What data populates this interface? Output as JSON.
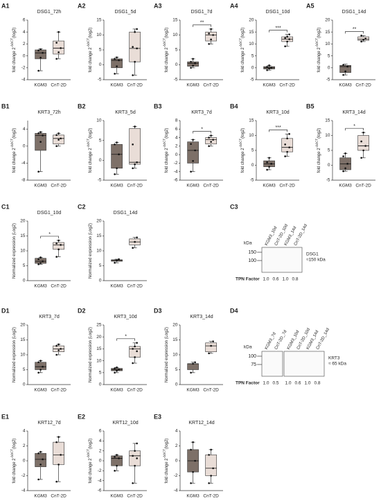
{
  "chart_data": [
    {
      "type": "box",
      "panel": "A1",
      "title": "DSG1_72h",
      "row": 0,
      "col": 0,
      "ylabel": "fold change 2",
      "ylabel_sup": "-ΔΔCT",
      "ylabel_tail": "(log2)",
      "categories": [
        "KGM3",
        "CnT-2D"
      ],
      "ylim": [
        -4,
        6
      ],
      "yticks": [
        -4,
        -2,
        0,
        2,
        4,
        6
      ],
      "boxes": [
        {
          "color": "#7d7068",
          "whislo": -2.5,
          "q1": -0.5,
          "med": 0.5,
          "q3": 1,
          "whishi": 1.2,
          "points": [
            -2.5,
            -0.3,
            0.5,
            0.9,
            1.1
          ]
        },
        {
          "color": "#e9ddd7",
          "whislo": -0.5,
          "q1": 0.3,
          "med": 1.3,
          "q3": 2.5,
          "whishi": 4,
          "points": [
            -0.5,
            0.6,
            1.3,
            2.2,
            4
          ]
        }
      ]
    },
    {
      "type": "box",
      "panel": "A2",
      "title": "DSG1_5d",
      "row": 0,
      "col": 1,
      "ylabel": "fold change 2",
      "ylabel_sup": "-ΔΔCT",
      "ylabel_tail": "(log2)",
      "categories": [
        "KGM3",
        "CnT-2D"
      ],
      "ylim": [
        -5,
        15
      ],
      "yticks": [
        -5,
        0,
        5,
        10,
        15
      ],
      "boxes": [
        {
          "color": "#7d7068",
          "whislo": -3,
          "q1": -1,
          "med": 1.5,
          "q3": 2,
          "whishi": 2.5,
          "points": [
            -3,
            -0.5,
            1.5,
            2,
            2.5
          ]
        },
        {
          "color": "#e9ddd7",
          "whislo": -3.5,
          "q1": 1,
          "med": 5.5,
          "q3": 11,
          "whishi": 12,
          "points": [
            -3.5,
            1,
            5.5,
            6,
            11,
            12
          ]
        }
      ]
    },
    {
      "type": "box",
      "panel": "A3",
      "title": "DSG1_7d",
      "row": 0,
      "col": 2,
      "annotation": "**",
      "ylabel": "fold change 2",
      "ylabel_sup": "-ΔΔCT",
      "ylabel_tail": "(log2)",
      "categories": [
        "KGM3",
        "CnT-2D"
      ],
      "ylim": [
        -5,
        15
      ],
      "yticks": [
        -5,
        0,
        5,
        10,
        15
      ],
      "boxes": [
        {
          "color": "#7d7068",
          "whislo": -1,
          "q1": -0.5,
          "med": 0.5,
          "q3": 1,
          "whishi": 2,
          "points": [
            -1,
            -0.3,
            0.5,
            1,
            2
          ]
        },
        {
          "color": "#e9ddd7",
          "whislo": 7,
          "q1": 8,
          "med": 10,
          "q3": 11,
          "whishi": 12,
          "points": [
            7,
            8.5,
            10,
            10.5,
            12
          ]
        }
      ]
    },
    {
      "type": "box",
      "panel": "A4",
      "title": "DSG1_10d",
      "row": 0,
      "col": 3,
      "annotation": "***",
      "ylabel": "fold change 2",
      "ylabel_sup": "-ΔΔCT",
      "ylabel_tail": "(log2)",
      "categories": [
        "KGM3",
        "CnT-2D"
      ],
      "ylim": [
        -5,
        20
      ],
      "yticks": [
        -5,
        0,
        5,
        10,
        15,
        20
      ],
      "boxes": [
        {
          "color": "#7d7068",
          "whislo": -1,
          "q1": -0.5,
          "med": 0,
          "q3": 0.5,
          "whishi": 1,
          "points": [
            -1,
            -0.3,
            0,
            0.4,
            1
          ]
        },
        {
          "color": "#e9ddd7",
          "whislo": 9,
          "q1": 11,
          "med": 12,
          "q3": 13,
          "whishi": 14,
          "points": [
            9,
            11,
            12,
            12.5,
            13,
            14
          ]
        }
      ]
    },
    {
      "type": "box",
      "panel": "A5",
      "title": "DSG1_14d",
      "row": 0,
      "col": 4,
      "annotation": "**",
      "ylabel": "fold change 2",
      "ylabel_sup": "-ΔΔCT",
      "ylabel_tail": "(log2)",
      "categories": [
        "KGM3",
        "CnT-2D"
      ],
      "ylim": [
        -5,
        20
      ],
      "yticks": [
        -5,
        0,
        5,
        10,
        15,
        20
      ],
      "boxes": [
        {
          "color": "#7d7068",
          "whislo": -3,
          "q1": -2,
          "med": 0.5,
          "q3": 1,
          "whishi": 1.5,
          "points": [
            -3,
            -1.5,
            0.5,
            1.2
          ]
        },
        {
          "color": "#e9ddd7",
          "whislo": 11,
          "q1": 11.5,
          "med": 12,
          "q3": 13,
          "whishi": 13.5,
          "points": [
            11,
            11.8,
            12.2,
            13.5
          ]
        }
      ]
    },
    {
      "type": "box",
      "panel": "B1",
      "title": "KRT3_72h",
      "row": 1,
      "col": 0,
      "ylabel": "fold change 2",
      "ylabel_sup": "-ΔΔCT",
      "ylabel_tail": "(log2)",
      "categories": [
        "KGM3",
        "CnT-2D"
      ],
      "ylim": [
        -8,
        6
      ],
      "yticks": [
        -8,
        -4,
        0,
        4
      ],
      "boxes": [
        {
          "color": "#7d7068",
          "whislo": -6,
          "q1": -1,
          "med": 2.5,
          "q3": 3,
          "whishi": 3.3,
          "points": [
            -6,
            1,
            2.5,
            3,
            3.3
          ]
        },
        {
          "color": "#e9ddd7",
          "whislo": 0,
          "q1": 0.5,
          "med": 1.8,
          "q3": 2.6,
          "whishi": 3,
          "points": [
            0,
            1.5,
            1.8,
            2.6,
            3
          ]
        }
      ]
    },
    {
      "type": "box",
      "panel": "B2",
      "title": "KRT3_5d",
      "row": 1,
      "col": 1,
      "ylabel": "fold change 2",
      "ylabel_sup": "-ΔΔCT",
      "ylabel_tail": "(log2)",
      "categories": [
        "KGM3",
        "CnT-2D"
      ],
      "ylim": [
        -5,
        10
      ],
      "yticks": [
        -5,
        0,
        5,
        10
      ],
      "boxes": [
        {
          "color": "#7d7068",
          "whislo": -3.5,
          "q1": -2,
          "med": 1.5,
          "q3": 4,
          "whishi": 4.5,
          "points": [
            -3.5,
            -2,
            1.5,
            4,
            4.5
          ]
        },
        {
          "color": "#e9ddd7",
          "whislo": -2,
          "q1": -1,
          "med": -0.5,
          "q3": 8,
          "whishi": 8.5,
          "points": [
            -2,
            -1,
            -0.5,
            4,
            8.5
          ]
        }
      ]
    },
    {
      "type": "box",
      "panel": "B3",
      "title": "KRT3_7d",
      "row": 1,
      "col": 2,
      "annotation": "*",
      "ylabel": "fold change 2",
      "ylabel_sup": "-ΔΔCT",
      "ylabel_tail": "(log2)",
      "categories": [
        "KGM3",
        "CnT-2D"
      ],
      "ylim": [
        -6,
        8
      ],
      "yticks": [
        -6,
        -4,
        -2,
        0,
        2,
        4,
        6,
        8
      ],
      "boxes": [
        {
          "color": "#7d7068",
          "whislo": -4,
          "q1": -2,
          "med": 1,
          "q3": 3,
          "whishi": 3.5,
          "points": [
            -4,
            -1.5,
            1,
            2.5,
            3.5
          ]
        },
        {
          "color": "#e9ddd7",
          "whislo": 2,
          "q1": 2.5,
          "med": 3.5,
          "q3": 4,
          "whishi": 4.5,
          "points": [
            2,
            3,
            3.5,
            4,
            4.5
          ]
        }
      ]
    },
    {
      "type": "box",
      "panel": "B4",
      "title": "KRT3_10d",
      "row": 1,
      "col": 3,
      "annotation": "***",
      "ylabel": "fold change 2",
      "ylabel_sup": "-ΔΔCT",
      "ylabel_tail": "(log2)",
      "categories": [
        "KGM3",
        "CnT-2D"
      ],
      "ylim": [
        -5,
        15
      ],
      "yticks": [
        -5,
        0,
        5,
        10,
        15
      ],
      "boxes": [
        {
          "color": "#7d7068",
          "whislo": -1.5,
          "q1": -0.5,
          "med": 0.5,
          "q3": 1.5,
          "whishi": 2.5,
          "points": [
            -1.5,
            -0.5,
            0.5,
            1,
            2.5
          ]
        },
        {
          "color": "#e9ddd7",
          "whislo": 3,
          "q1": 4.5,
          "med": 6,
          "q3": 9,
          "whishi": 10.5,
          "points": [
            3,
            4.5,
            6,
            7,
            9,
            10.5
          ]
        }
      ]
    },
    {
      "type": "box",
      "panel": "B5",
      "title": "KRT3_14d",
      "row": 1,
      "col": 4,
      "annotation": "*",
      "ylabel": "fold change 2",
      "ylabel_sup": "-ΔΔCT",
      "ylabel_tail": "(log2)",
      "categories": [
        "KGM3",
        "CnT-2D"
      ],
      "ylim": [
        -5,
        15
      ],
      "yticks": [
        -5,
        0,
        5,
        10,
        15
      ],
      "boxes": [
        {
          "color": "#7d7068",
          "whislo": -2,
          "q1": -1.5,
          "med": 0.5,
          "q3": 2.5,
          "whishi": 4,
          "points": [
            -2,
            -1,
            0.5,
            3,
            4
          ]
        },
        {
          "color": "#e9ddd7",
          "whislo": 2.5,
          "q1": 5,
          "med": 6.5,
          "q3": 10,
          "whishi": 11,
          "points": [
            2.5,
            5,
            6.5,
            8,
            11
          ]
        }
      ]
    },
    {
      "type": "box",
      "panel": "C1",
      "title": "DSG1_10d",
      "row": 2,
      "col": 0,
      "annotation": "*",
      "ylabel": "Normalized expression (Log2)",
      "categories": [
        "KGM3",
        "CnT-2D"
      ],
      "ylim": [
        0,
        20
      ],
      "yticks": [
        0,
        5,
        10,
        15,
        20
      ],
      "boxes": [
        {
          "color": "#7d7068",
          "whislo": 5.5,
          "q1": 5.8,
          "med": 6.5,
          "q3": 7.5,
          "whishi": 7.8,
          "points": [
            5.5,
            5.9,
            6.5,
            7.2,
            7.8
          ]
        },
        {
          "color": "#e9ddd7",
          "whislo": 8,
          "q1": 10.5,
          "med": 12,
          "q3": 12.8,
          "whishi": 13.5,
          "points": [
            8,
            10.5,
            12,
            12.5,
            13.5
          ]
        }
      ]
    },
    {
      "type": "box",
      "panel": "C2",
      "title": "DSG1_14d",
      "row": 2,
      "col": 1,
      "ylabel": "Normalized expression (Log2)",
      "categories": [
        "KGM3",
        "CnT-2D"
      ],
      "ylim": [
        0,
        20
      ],
      "yticks": [
        0,
        5,
        10,
        15,
        20
      ],
      "boxes": [
        {
          "color": "#7d7068",
          "whislo": 6,
          "q1": 6.5,
          "med": 6.8,
          "q3": 7,
          "whishi": 7.2,
          "points": [
            6,
            6.8,
            7.2
          ]
        },
        {
          "color": "#e9ddd7",
          "whislo": 11,
          "q1": 12,
          "med": 13,
          "q3": 14,
          "whishi": 14.5,
          "points": [
            11,
            13,
            14.5
          ]
        }
      ]
    },
    {
      "type": "box",
      "panel": "D1",
      "title": "KRT3_7d",
      "row": 3,
      "col": 0,
      "ylabel": "Normalized expression (Log2)",
      "categories": [
        "KGM3",
        "CnT-2D"
      ],
      "ylim": [
        0,
        20
      ],
      "yticks": [
        0,
        5,
        10,
        15,
        20
      ],
      "boxes": [
        {
          "color": "#7d7068",
          "whislo": 4,
          "q1": 5,
          "med": 6,
          "q3": 7.5,
          "whishi": 8,
          "points": [
            4,
            5,
            6,
            7.5,
            8
          ]
        },
        {
          "color": "#e9ddd7",
          "whislo": 10,
          "q1": 11,
          "med": 12,
          "q3": 13,
          "whishi": 13.5,
          "points": [
            10,
            11.5,
            12,
            13,
            13.5
          ]
        }
      ]
    },
    {
      "type": "box",
      "panel": "D2",
      "title": "KRT3_10d",
      "row": 3,
      "col": 1,
      "annotation": "*",
      "ylabel": "Normalized expression (Log2)",
      "categories": [
        "KGM3",
        "CnT-2D"
      ],
      "ylim": [
        0,
        25
      ],
      "yticks": [
        0,
        5,
        10,
        15,
        20,
        25
      ],
      "boxes": [
        {
          "color": "#7d7068",
          "whislo": 5,
          "q1": 5.8,
          "med": 6.3,
          "q3": 6.8,
          "whishi": 7.2,
          "points": [
            5,
            5.8,
            6.3,
            6.8,
            7.2
          ]
        },
        {
          "color": "#e9ddd7",
          "whislo": 9,
          "q1": 11.5,
          "med": 15,
          "q3": 16,
          "whishi": 17.5,
          "points": [
            9,
            11.5,
            14,
            15,
            16,
            17.5
          ]
        }
      ]
    },
    {
      "type": "box",
      "panel": "D3",
      "title": "KRT3_14d",
      "row": 3,
      "col": 2,
      "ylabel": "Normalized expression (Log2)",
      "categories": [
        "KGM3",
        "CnT-2D"
      ],
      "ylim": [
        0,
        20
      ],
      "yticks": [
        0,
        5,
        10,
        15,
        20
      ],
      "boxes": [
        {
          "color": "#7d7068",
          "whislo": 4,
          "q1": 5,
          "med": 7,
          "q3": 7,
          "whishi": 7.5,
          "points": [
            4,
            7,
            7.5
          ]
        },
        {
          "color": "#e9ddd7",
          "whislo": 10.5,
          "q1": 11,
          "med": 13,
          "q3": 14,
          "whishi": 14.5,
          "points": [
            10.5,
            13,
            14.5
          ]
        }
      ]
    },
    {
      "type": "box",
      "panel": "E1",
      "title": "KRT12_7d",
      "row": 4,
      "col": 0,
      "ylabel": "fold change 2",
      "ylabel_sup": "-ΔΔCT",
      "ylabel_tail": "(log2)",
      "categories": [
        "KGM3",
        "CnT-2D"
      ],
      "ylim": [
        -4,
        4
      ],
      "yticks": [
        -4,
        -2,
        0,
        2,
        4
      ],
      "boxes": [
        {
          "color": "#7d7068",
          "whislo": -2.5,
          "q1": -0.8,
          "med": 0.2,
          "q3": 1,
          "whishi": 1.2,
          "points": [
            -2.5,
            -0.5,
            0.2,
            1,
            1.2
          ]
        },
        {
          "color": "#e9ddd7",
          "whislo": -2.8,
          "q1": -0.5,
          "med": 0.8,
          "q3": 2.5,
          "whishi": 3.2,
          "points": [
            -2.8,
            -0.5,
            0.8,
            2.5,
            3.2
          ]
        }
      ]
    },
    {
      "type": "box",
      "panel": "E2",
      "title": "KRT12_10d",
      "row": 4,
      "col": 1,
      "ylabel": "fold change 2",
      "ylabel_sup": "-ΔΔCT",
      "ylabel_tail": "(log2)",
      "categories": [
        "KGM3",
        "CnT-2D"
      ],
      "ylim": [
        -6,
        6
      ],
      "yticks": [
        -6,
        -4,
        -2,
        0,
        2,
        4,
        6
      ],
      "boxes": [
        {
          "color": "#7d7068",
          "whislo": -2,
          "q1": -1,
          "med": 0.5,
          "q3": 1,
          "whishi": 1.2,
          "points": [
            -2,
            -1,
            0.5,
            0.8,
            1.2
          ]
        },
        {
          "color": "#e9ddd7",
          "whislo": -4.5,
          "q1": -1,
          "med": 1,
          "q3": 2,
          "whishi": 3.5,
          "points": [
            -4.5,
            -1,
            0.5,
            1,
            2,
            3.5
          ]
        }
      ]
    },
    {
      "type": "box",
      "panel": "E3",
      "title": "KRT12_14d",
      "row": 4,
      "col": 2,
      "ylabel": "fold change 2",
      "ylabel_sup": "-ΔΔCT",
      "ylabel_tail": "(log2)",
      "categories": [
        "KGM3",
        "CnT-2D"
      ],
      "ylim": [
        -4,
        4
      ],
      "yticks": [
        -4,
        -2,
        0,
        2,
        4
      ],
      "boxes": [
        {
          "color": "#7d7068",
          "whislo": -3,
          "q1": -1.5,
          "med": 0,
          "q3": 1.5,
          "whishi": 2.5,
          "points": [
            -3,
            -1.5,
            0,
            1.5,
            2.5
          ]
        },
        {
          "color": "#e9ddd7",
          "whislo": -3,
          "q1": -2,
          "med": -1,
          "q3": 0.8,
          "whishi": 1.5,
          "points": [
            -3,
            -2,
            -1,
            0.8,
            1.5
          ]
        }
      ]
    }
  ],
  "blots": [
    {
      "panel": "C3",
      "row": 2,
      "lane_groups": [
        [
          "KGM3_10d",
          "CnT-2D_10d",
          "KGM3_14d",
          "CnT-2D_14d"
        ]
      ],
      "kda_label": "kDa",
      "markers": [
        150,
        100
      ],
      "band_label": "DSG1",
      "band_sublabel": "≈150 kDa",
      "tpn_label": "TPN Factor",
      "tpn": [
        1,
        0.6,
        1,
        0.8
      ],
      "tpn_labels": [
        "1.0",
        "0.6",
        "1.0",
        "0.8"
      ]
    },
    {
      "panel": "D4",
      "row": 3,
      "lane_groups": [
        [
          "KGM3_7d",
          "CnT-2D_7d"
        ],
        [
          "KGM3_10d",
          "CnT-2D_10d",
          "KGM3_14d",
          "CnT-2D_14d"
        ]
      ],
      "kda_label": "kDa",
      "markers": [
        100,
        75
      ],
      "band_label": "KRT3",
      "band_sublabel": "≈ 65 kDa",
      "tpn_label": "TPN Factor",
      "tpn": [
        1,
        0.5,
        1,
        0.6,
        1,
        0.8
      ],
      "tpn_labels": [
        "1.0",
        "0.5",
        "1.0",
        "0.6",
        "1.0",
        "0.8"
      ]
    }
  ]
}
